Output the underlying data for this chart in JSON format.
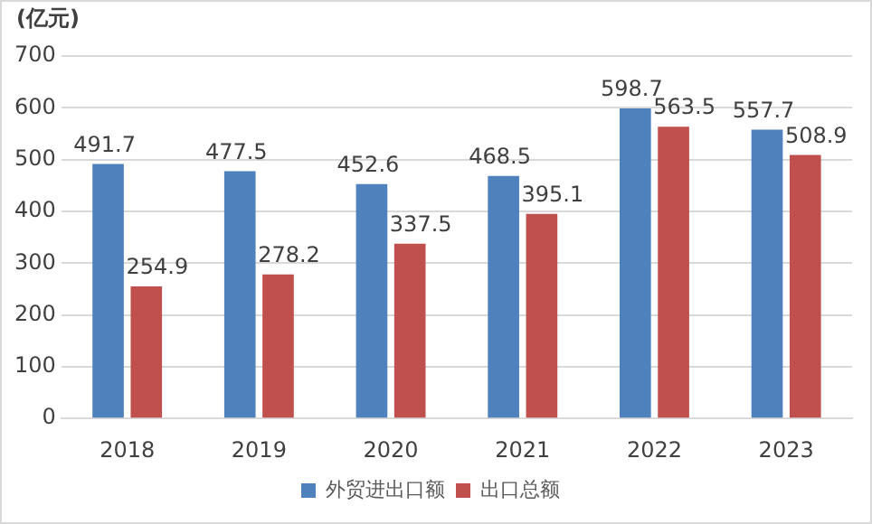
{
  "chart_data": {
    "type": "bar",
    "ylabel": "(亿元)",
    "categories": [
      "2018",
      "2019",
      "2020",
      "2021",
      "2022",
      "2023"
    ],
    "series": [
      {
        "name": "外贸进出口额",
        "color": "#4f81bd",
        "values": [
          491.7,
          477.5,
          452.6,
          468.5,
          598.7,
          557.7
        ]
      },
      {
        "name": "出口总额",
        "color": "#c0504d",
        "values": [
          254.9,
          278.2,
          337.5,
          395.1,
          563.5,
          508.9
        ]
      }
    ],
    "ylim": [
      0,
      700
    ],
    "yticks": [
      0,
      100,
      200,
      300,
      400,
      500,
      600,
      700
    ],
    "grid": "y",
    "legend": "bottom",
    "data_labels": true
  }
}
